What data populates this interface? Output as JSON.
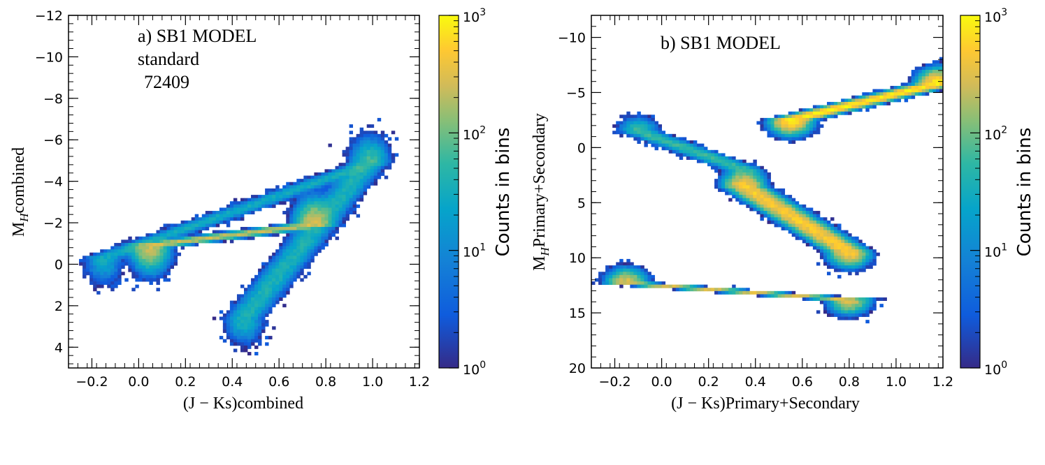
{
  "chart_data": [
    {
      "type": "heatmap",
      "panel_label": "a)  SB1 MODEL",
      "panel_lines": [
        "standard",
        "72409"
      ],
      "xlabel": "(J − Ks)combined",
      "ylabel": "M_H combined",
      "ylabel_main": "M",
      "ylabel_sub": "H",
      "ylabel_rest": "combined",
      "xlim": [
        -0.3,
        1.2
      ],
      "ylim": [
        5,
        -12
      ],
      "x_ticks": [
        -0.2,
        0.0,
        0.2,
        0.4,
        0.6,
        0.8,
        1.0,
        1.2
      ],
      "x_tick_labels": [
        "−0.2",
        "0.0",
        "0.2",
        "0.4",
        "0.6",
        "0.8",
        "1.0",
        "1.2"
      ],
      "y_ticks": [
        -12,
        -10,
        -8,
        -6,
        -4,
        -2,
        0,
        2,
        4
      ],
      "y_tick_labels": [
        "−12",
        "−10",
        "−8",
        "−6",
        "−4",
        "−2",
        "0",
        "2",
        "4"
      ],
      "colorbar": {
        "scale": "log",
        "range": [
          1,
          1000
        ],
        "title": "Counts in bins",
        "tick_labels": [
          {
            "base": "10",
            "exp": "3",
            "value": 1000
          },
          {
            "base": "10",
            "exp": "2",
            "value": 100
          },
          {
            "base": "10",
            "exp": "1",
            "value": 10
          },
          {
            "base": "10",
            "exp": "0",
            "value": 1
          }
        ]
      },
      "density_features": [
        {
          "x": [
            -0.15,
            1.0
          ],
          "y": [
            -0.3,
            -4.9
          ],
          "peak_counts": 30
        },
        {
          "x": [
            0.05,
            0.75
          ],
          "y": [
            -0.9,
            -1.9
          ],
          "peak_counts": 250
        },
        {
          "x": [
            0.45,
            0.98
          ],
          "y": [
            2.6,
            -4.9
          ],
          "peak_counts": 40
        }
      ]
    },
    {
      "type": "heatmap",
      "panel_label": "b) SB1 MODEL",
      "xlabel": "(J − Ks)Primary+Secondary",
      "ylabel": "M_H Primary+Secondary",
      "ylabel_main": "M",
      "ylabel_sub": "H",
      "ylabel_rest": "Primary+Secondary",
      "xlim": [
        -0.3,
        1.2
      ],
      "ylim": [
        20,
        -12
      ],
      "x_ticks": [
        -0.2,
        0.0,
        0.2,
        0.4,
        0.6,
        0.8,
        1.0,
        1.2
      ],
      "x_tick_labels": [
        "−0.2",
        "0.0",
        "0.2",
        "0.4",
        "0.6",
        "0.8",
        "1.0",
        "1.2"
      ],
      "y_ticks": [
        -10,
        -5,
        0,
        5,
        10,
        15,
        20
      ],
      "y_tick_labels": [
        "−10",
        "−5",
        "0",
        "5",
        "10",
        "15",
        "20"
      ],
      "colorbar": {
        "scale": "log",
        "range": [
          1,
          1000
        ],
        "title": "Counts in bins",
        "tick_labels": [
          {
            "base": "10",
            "exp": "3",
            "value": 1000
          },
          {
            "base": "10",
            "exp": "2",
            "value": 100
          },
          {
            "base": "10",
            "exp": "1",
            "value": 10
          },
          {
            "base": "10",
            "exp": "0",
            "value": 1
          }
        ]
      },
      "density_features": [
        {
          "x": [
            -0.1,
            0.35
          ],
          "y": [
            -1.5,
            2.0
          ],
          "peak_counts": 60
        },
        {
          "x": [
            0.35,
            0.8
          ],
          "y": [
            3.5,
            9.5
          ],
          "peak_counts": 500
        },
        {
          "x": [
            0.55,
            1.18
          ],
          "y": [
            -2.5,
            -5.8
          ],
          "peak_counts": 800
        },
        {
          "x": [
            -0.15,
            0.8
          ],
          "y": [
            12.3,
            13.8
          ],
          "peak_counts": 300
        }
      ]
    }
  ]
}
